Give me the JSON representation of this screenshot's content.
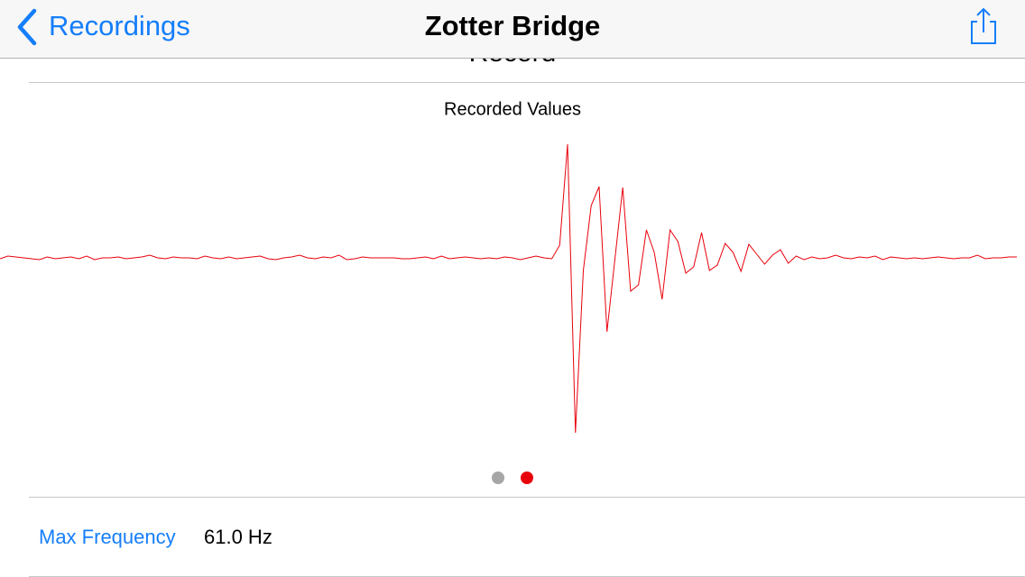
{
  "header": {
    "back": "Recordings",
    "title": "Zotter Bridge"
  },
  "section_title": "Record",
  "chart_data": {
    "type": "line",
    "title": "Recorded Values",
    "color": "#e8000b",
    "ylim": [
      -205,
      135
    ],
    "values": [
      -2,
      1,
      0,
      -1,
      -2,
      -3,
      0,
      -2,
      -1,
      0,
      -2,
      1,
      -3,
      -1,
      -1,
      0,
      -2,
      -1,
      0,
      2,
      -1,
      -2,
      0,
      -1,
      -1,
      -2,
      1,
      -1,
      -2,
      0,
      -2,
      -1,
      0,
      1,
      -2,
      -3,
      -1,
      0,
      2,
      -1,
      -2,
      0,
      -1,
      2,
      -3,
      -2,
      0,
      -1,
      -1,
      -1,
      -1,
      -2,
      -2,
      -1,
      0,
      -2,
      1,
      -2,
      -1,
      0,
      -1,
      -2,
      -1,
      -2,
      0,
      -1,
      -3,
      -1,
      1,
      -1,
      -2,
      13,
      125,
      -195,
      -15,
      57,
      78,
      -83,
      -3,
      77,
      -38,
      -31,
      30,
      5,
      -47,
      30,
      17,
      -18,
      -11,
      27,
      -15,
      -9,
      15,
      5,
      -16,
      14,
      3,
      -8,
      2,
      8,
      -7,
      1,
      -3,
      0,
      -2,
      -1,
      2,
      -1,
      -2,
      0,
      -1,
      1,
      -3,
      0,
      -1,
      -2,
      -1,
      -2,
      -1,
      0,
      -1,
      -2,
      -1,
      -1,
      2,
      -2,
      -1,
      -1,
      0,
      0
    ]
  },
  "detail": {
    "label": "Max Frequency",
    "value": "61.0 Hz"
  }
}
